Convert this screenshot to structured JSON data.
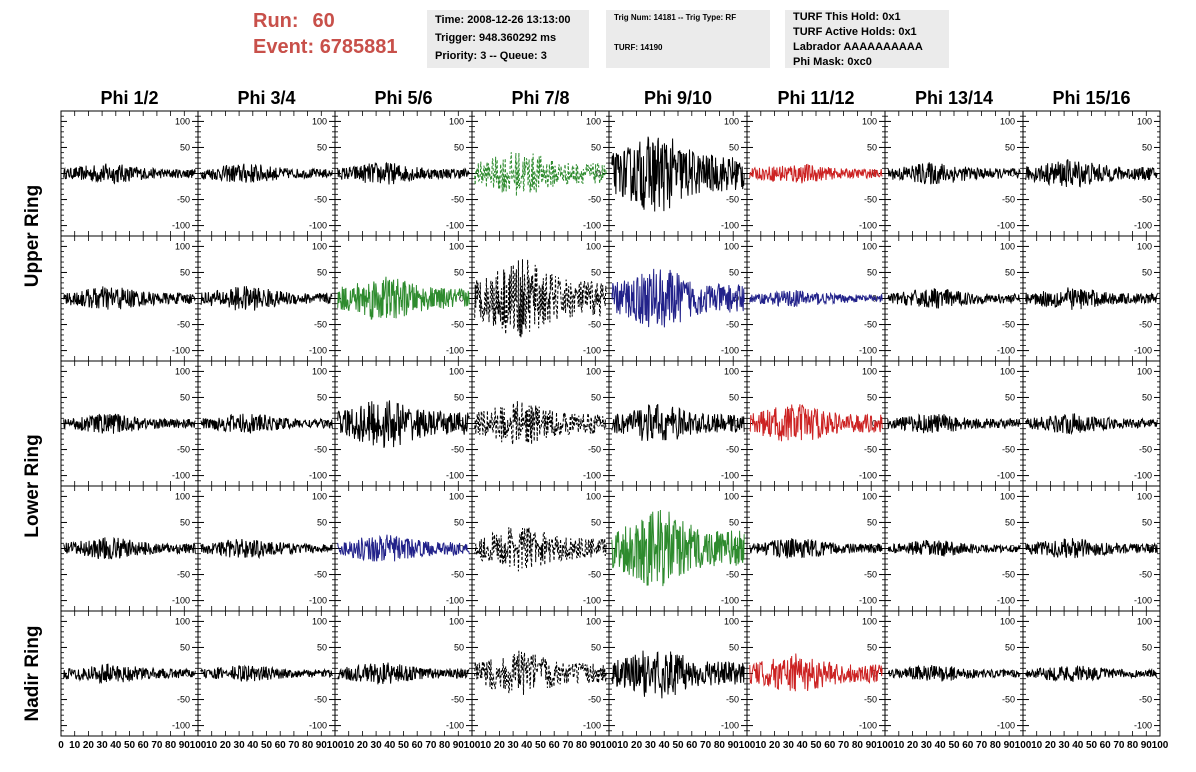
{
  "header": {
    "run_label": "Run:",
    "run_value": "60",
    "event_label": "Event:",
    "event_value": "6785881",
    "time_box": [
      "Time: 2008-12-26 13:13:00",
      "Trigger: 948.360292 ms",
      "Priority: 3 -- Queue: 3"
    ],
    "trig_box": [
      "Trig Num: 14181 -- Trig Type: RF",
      "TURF: 14190"
    ],
    "turf_box": [
      "TURF This Hold: 0x1",
      "TURF Active Holds: 0x1",
      "Labrador AAAAAAAAAA",
      "Phi Mask: 0xc0"
    ]
  },
  "chart_data": {
    "type": "line",
    "columns": [
      "Phi 1/2",
      "Phi 3/4",
      "Phi 5/6",
      "Phi 7/8",
      "Phi 9/10",
      "Phi 11/12",
      "Phi 13/14",
      "Phi 15/16"
    ],
    "ring_labels": [
      "Upper Ring",
      "Lower Ring",
      "Nadir Ring"
    ],
    "rows": 5,
    "y_ticks": [
      -100,
      -50,
      0,
      50,
      100
    ],
    "y_tick_labels": [
      "-100",
      "-50",
      "0",
      "50",
      "100"
    ],
    "ylim": [
      -120,
      120
    ],
    "xlim": [
      0,
      100
    ],
    "x_tick_labels": [
      "0",
      "10",
      "20",
      "30",
      "40",
      "50",
      "60",
      "70",
      "80",
      "90",
      "100"
    ],
    "colors": {
      "black": "#000000",
      "green": "#2e8b2e",
      "red": "#cc2222",
      "blue": "#22228a"
    },
    "panels": [
      [
        "black",
        "black",
        "black",
        "green_dashed",
        "black",
        "red",
        "black",
        "black"
      ],
      [
        "black",
        "black",
        "green",
        "black_dashed",
        "blue",
        "blue",
        "black",
        "black"
      ],
      [
        "black",
        "black",
        "black",
        "black_dashed",
        "black",
        "red",
        "black",
        "black"
      ],
      [
        "black",
        "black",
        "blue",
        "black_dashed",
        "green",
        "black",
        "black",
        "black"
      ],
      [
        "black",
        "black",
        "black",
        "black_dashed",
        "black",
        "red",
        "black",
        "black"
      ]
    ],
    "amplitudes": [
      [
        18,
        18,
        20,
        40,
        70,
        18,
        20,
        25
      ],
      [
        22,
        22,
        40,
        70,
        55,
        15,
        18,
        20
      ],
      [
        18,
        18,
        45,
        40,
        35,
        35,
        18,
        18
      ],
      [
        20,
        18,
        25,
        40,
        70,
        18,
        15,
        18
      ],
      [
        18,
        15,
        20,
        40,
        45,
        35,
        15,
        15
      ]
    ]
  }
}
